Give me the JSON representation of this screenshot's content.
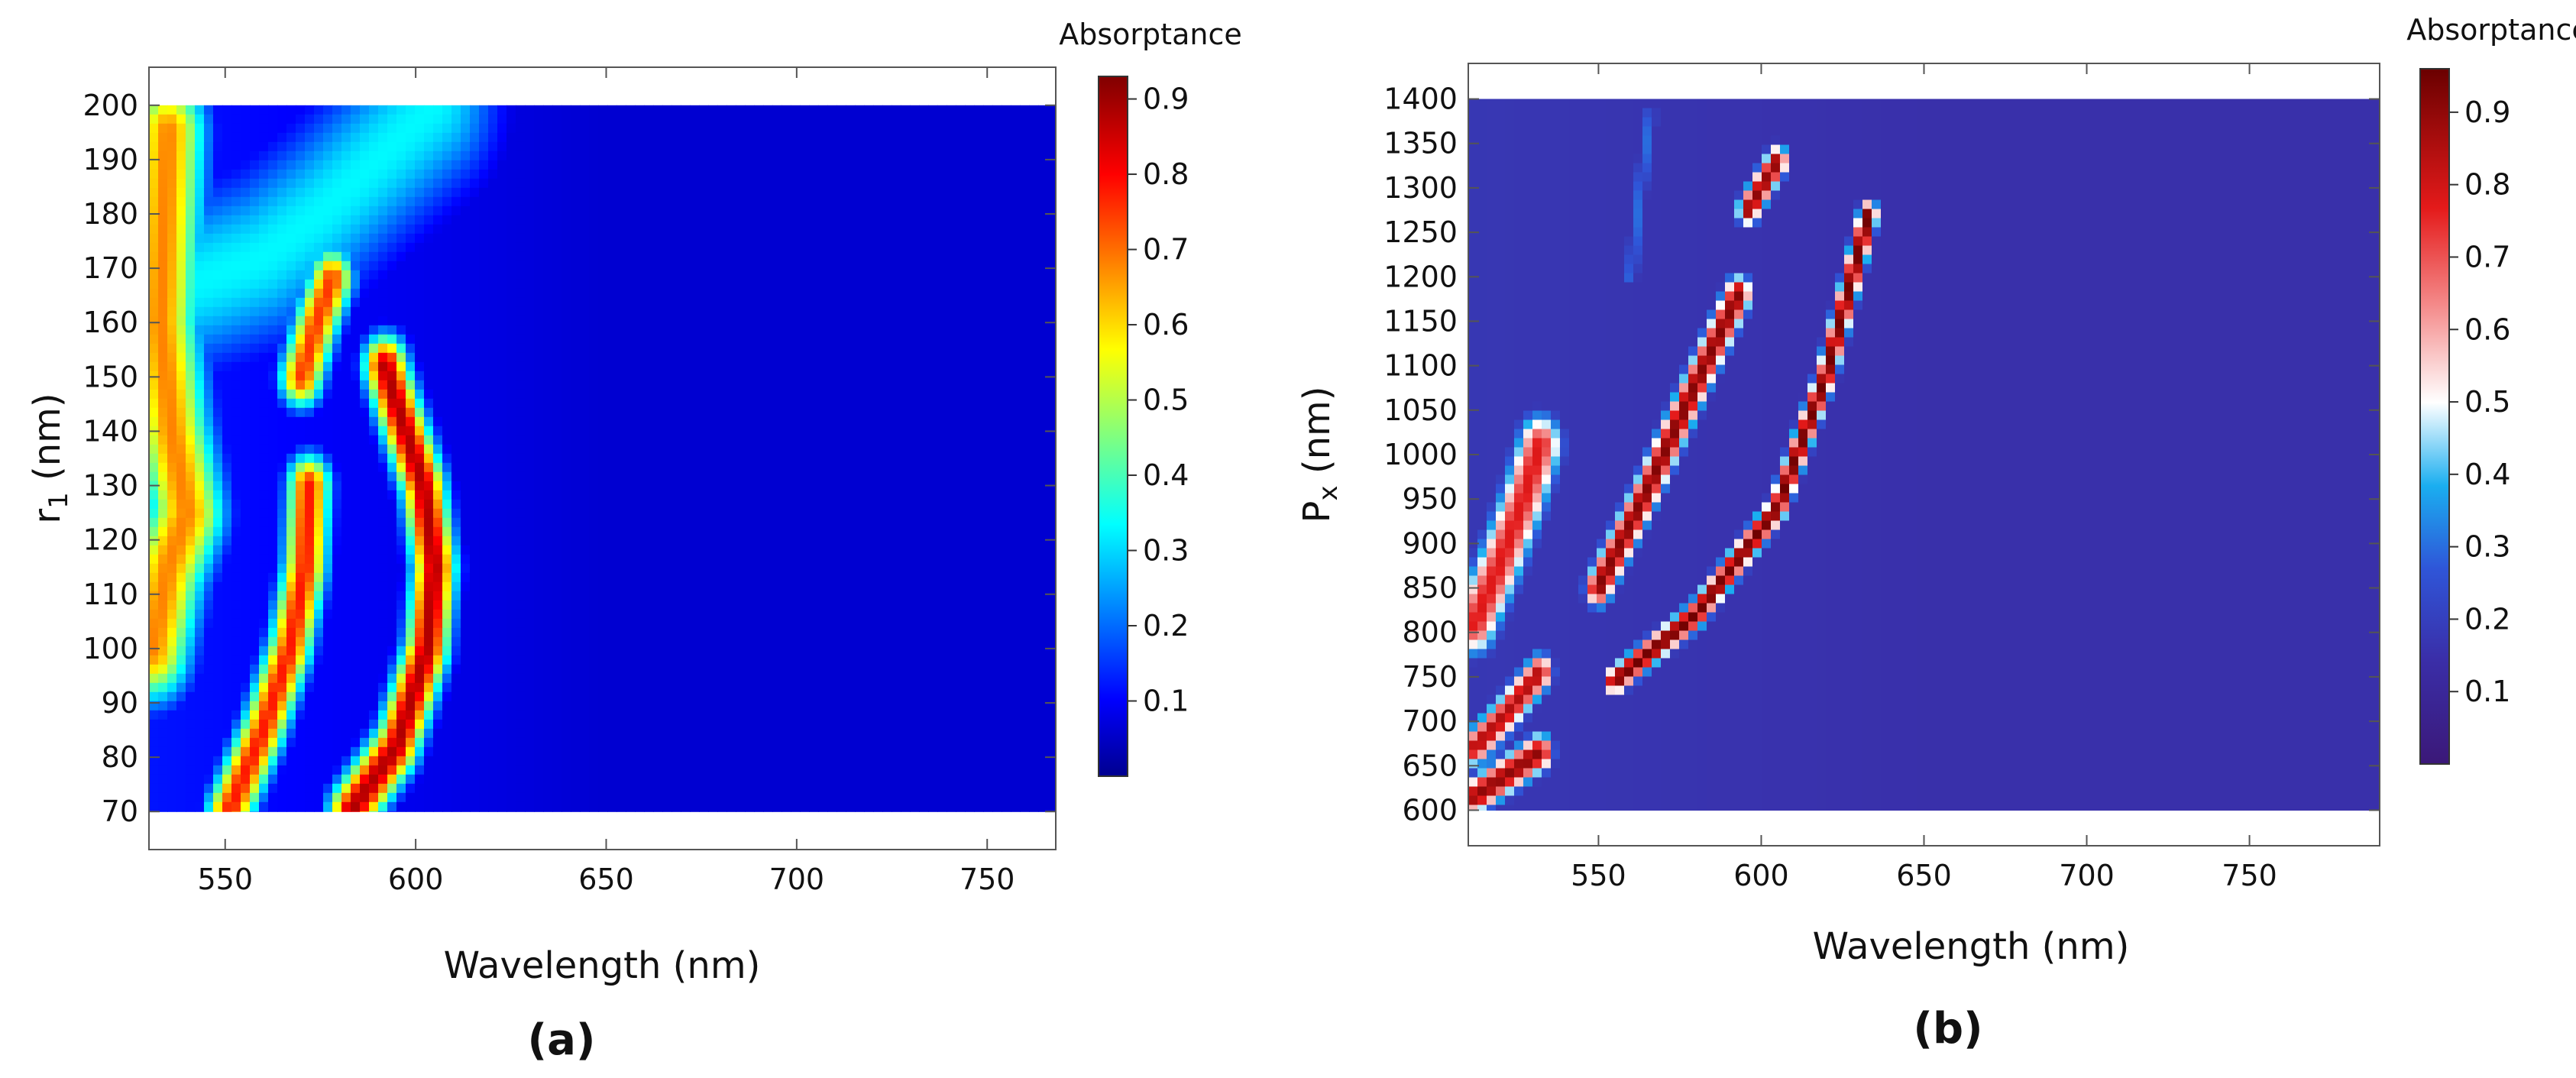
{
  "chart_data": [
    {
      "type": "heatmap",
      "panel_label": "(a)",
      "title": "",
      "xlabel": "Wavelength (nm)",
      "ylabel_main": "r",
      "ylabel_sub": "1",
      "ylabel_unit": " (nm)",
      "xlim": [
        530,
        768
      ],
      "ylim": [
        63,
        207
      ],
      "data_xrange": [
        530,
        768
      ],
      "data_yrange": [
        70,
        200
      ],
      "x_ticks": [
        550,
        600,
        650,
        700,
        750
      ],
      "y_ticks": [
        70,
        80,
        90,
        100,
        110,
        120,
        130,
        140,
        150,
        160,
        170,
        180,
        190,
        200
      ],
      "colorbar": {
        "title": "Absorptance",
        "colormap": "jet",
        "range": [
          0.0,
          0.93
        ],
        "ticks": [
          0.1,
          0.2,
          0.3,
          0.4,
          0.5,
          0.6,
          0.7,
          0.8,
          0.9
        ]
      },
      "background_value": 0.06,
      "features": [
        {
          "name": "left-edge band",
          "points": [
            [
              531,
              100
            ],
            [
              535,
              115
            ],
            [
              540,
              125
            ],
            [
              536,
              140
            ],
            [
              533,
              160
            ],
            [
              535,
              195
            ]
          ],
          "peak": 0.68,
          "sigma_nm": 7
        },
        {
          "name": "upper-left broad band",
          "points": [
            [
              531,
              165
            ],
            [
              545,
              168
            ],
            [
              560,
              172
            ],
            [
              575,
              180
            ],
            [
              590,
              190
            ],
            [
              605,
              200
            ]
          ],
          "peak": 0.33,
          "sigma_nm": 12
        },
        {
          "name": "central short band",
          "points": [
            [
              570,
              150
            ],
            [
              574,
              160
            ],
            [
              578,
              168
            ]
          ],
          "peak": 0.75,
          "sigma_nm": 4
        },
        {
          "name": "central long band",
          "points": [
            [
              551,
              70
            ],
            [
              560,
              85
            ],
            [
              567,
              100
            ],
            [
              571,
              115
            ],
            [
              572,
              130
            ]
          ],
          "peak": 0.78,
          "sigma_nm": 4
        },
        {
          "name": "right band",
          "points": [
            [
              583,
              70
            ],
            [
              595,
              82
            ],
            [
              603,
              100
            ],
            [
              605,
              115
            ],
            [
              602,
              130
            ],
            [
              595,
              145
            ],
            [
              592,
              152
            ]
          ],
          "peak": 0.88,
          "sigma_nm": 4
        }
      ]
    },
    {
      "type": "heatmap",
      "panel_label": "(b)",
      "title": "",
      "xlabel": "Wavelength (nm)",
      "ylabel_main": "P",
      "ylabel_sub": "x",
      "ylabel_unit": " (nm)",
      "xlim": [
        510,
        790
      ],
      "ylim": [
        560,
        1440
      ],
      "data_xrange": [
        510,
        790
      ],
      "data_yrange": [
        600,
        1400
      ],
      "x_ticks": [
        550,
        600,
        650,
        700,
        750
      ],
      "y_ticks": [
        600,
        650,
        700,
        750,
        800,
        850,
        900,
        950,
        1000,
        1050,
        1100,
        1150,
        1200,
        1250,
        1300,
        1350,
        1400
      ],
      "colorbar": {
        "title": "Absorptance",
        "colormap": "diverging",
        "range": [
          0.0,
          0.96
        ],
        "ticks": [
          0.1,
          0.2,
          0.3,
          0.4,
          0.5,
          0.6,
          0.7,
          0.8,
          0.9
        ]
      },
      "background_value": 0.15,
      "features": [
        {
          "name": "lower-left band",
          "points": [
            [
              512,
              810
            ],
            [
              520,
              880
            ],
            [
              527,
              950
            ],
            [
              532,
              1010
            ]
          ],
          "peak": 0.78,
          "sigma_nm": 5
        },
        {
          "name": "bottom-left short band",
          "points": [
            [
              512,
              670
            ],
            [
              522,
              710
            ],
            [
              532,
              755
            ]
          ],
          "peak": 0.85,
          "sigma_nm": 3
        },
        {
          "name": "bottom dotted band",
          "points": [
            [
              512,
              615
            ],
            [
              522,
              640
            ],
            [
              532,
              665
            ]
          ],
          "peak": 0.9,
          "sigma_nm": 3
        },
        {
          "name": "middle band",
          "points": [
            [
              550,
              850
            ],
            [
              565,
              960
            ],
            [
              580,
              1080
            ],
            [
              593,
              1180
            ]
          ],
          "peak": 0.92,
          "sigma_nm": 3
        },
        {
          "name": "upper short band",
          "points": [
            [
              596,
              1275
            ],
            [
              600,
              1300
            ],
            [
              605,
              1330
            ]
          ],
          "peak": 0.9,
          "sigma_nm": 2.5
        },
        {
          "name": "right band",
          "points": [
            [
              555,
              745
            ],
            [
              580,
              820
            ],
            [
              605,
              940
            ],
            [
              620,
              1090
            ],
            [
              633,
              1270
            ]
          ],
          "peak": 0.95,
          "sigma_nm": 2.2
        },
        {
          "name": "faint left band",
          "points": [
            [
              560,
              1200
            ],
            [
              563,
              1300
            ],
            [
              566,
              1380
            ]
          ],
          "peak": 0.3,
          "sigma_nm": 2
        }
      ]
    }
  ]
}
